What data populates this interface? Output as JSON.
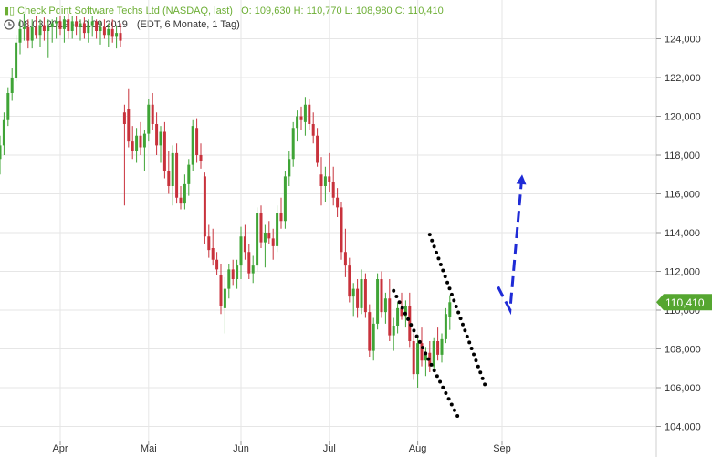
{
  "header": {
    "instrument": "Check Point Software Techs Ltd (NASDAQ, last)",
    "ohlc": "O: 109,630  H: 110,770  L: 108,980  C: 110,410",
    "date_range": "08.03.2019 - 10.09.2019",
    "info": "(EDT, 6 Monate, 1 Tag)",
    "icon": "candlestick-icon",
    "clock_icon": "clock-icon"
  },
  "colors": {
    "up": "#3fa436",
    "down": "#c8323c",
    "last_price_bg": "#55a630",
    "trendline": "#000000",
    "forecast": "#1f2bd6",
    "grid": "#e6e6e6",
    "axis_text": "#333333"
  },
  "chart_data": {
    "type": "candlestick",
    "title": "Check Point Software Techs Ltd (NASDAQ, last)",
    "xlabel": "",
    "ylabel": "",
    "ylim": [
      103.5,
      125
    ],
    "y_ticks": [
      104,
      106,
      108,
      110,
      112,
      114,
      116,
      118,
      120,
      122,
      124
    ],
    "y_tick_labels": [
      "104,000",
      "106,000",
      "108,000",
      "110,000",
      "112,000",
      "114,000",
      "116,000",
      "118,000",
      "120,000",
      "122,000",
      "124,000"
    ],
    "x_tick_labels": [
      "Apr",
      "Mai",
      "Jun",
      "Jul",
      "Aug",
      "Sep"
    ],
    "x_tick_index": [
      15,
      37,
      60,
      82,
      104,
      125
    ],
    "last_price": 110.41,
    "last_price_label": "110,410",
    "grid": true,
    "candles": [
      [
        117.8,
        119.0,
        117.0,
        118.5
      ],
      [
        118.5,
        120.2,
        118.0,
        119.8
      ],
      [
        119.8,
        121.5,
        119.5,
        121.2
      ],
      [
        121.2,
        122.5,
        120.8,
        122.0
      ],
      [
        122.0,
        124.2,
        121.8,
        123.8
      ],
      [
        123.8,
        125.0,
        123.2,
        124.5
      ],
      [
        124.5,
        125.3,
        123.9,
        124.6
      ],
      [
        124.6,
        125.0,
        123.5,
        123.9
      ],
      [
        123.9,
        125.0,
        123.5,
        124.6
      ],
      [
        124.6,
        125.2,
        124.0,
        124.2
      ],
      [
        124.2,
        125.0,
        123.6,
        124.7
      ],
      [
        124.7,
        125.1,
        123.9,
        124.4
      ],
      [
        124.4,
        125.0,
        123.0,
        124.6
      ],
      [
        124.6,
        125.0,
        123.8,
        124.8
      ],
      [
        124.8,
        125.1,
        124.0,
        124.9
      ],
      [
        124.9,
        125.2,
        124.2,
        124.5
      ],
      [
        124.5,
        125.2,
        123.8,
        125.0
      ],
      [
        125.0,
        125.3,
        124.0,
        124.4
      ],
      [
        124.4,
        125.2,
        124.0,
        124.9
      ],
      [
        124.9,
        125.2,
        124.2,
        124.6
      ],
      [
        124.6,
        125.0,
        123.9,
        124.8
      ],
      [
        124.8,
        125.1,
        124.0,
        124.3
      ],
      [
        124.3,
        125.0,
        123.8,
        124.7
      ],
      [
        124.7,
        125.2,
        124.1,
        124.9
      ],
      [
        124.9,
        125.0,
        124.0,
        124.4
      ],
      [
        124.4,
        124.9,
        123.7,
        124.6
      ],
      [
        124.6,
        125.0,
        124.0,
        124.2
      ],
      [
        124.2,
        124.8,
        123.6,
        124.5
      ],
      [
        124.5,
        125.0,
        123.8,
        124.1
      ],
      [
        124.1,
        124.7,
        123.5,
        124.3
      ],
      [
        124.3,
        124.8,
        123.6,
        123.9
      ],
      [
        120.2,
        120.6,
        115.4,
        119.6
      ],
      [
        120.4,
        121.4,
        118.4,
        118.7
      ],
      [
        118.7,
        119.5,
        117.8,
        118.2
      ],
      [
        118.2,
        119.4,
        117.6,
        119.0
      ],
      [
        119.0,
        119.7,
        118.0,
        118.4
      ],
      [
        118.4,
        119.3,
        117.2,
        119.1
      ],
      [
        119.1,
        120.9,
        118.7,
        120.6
      ],
      [
        120.6,
        121.2,
        119.3,
        119.6
      ],
      [
        119.6,
        120.2,
        118.0,
        118.5
      ],
      [
        118.5,
        119.5,
        117.6,
        119.2
      ],
      [
        119.2,
        119.7,
        116.8,
        117.2
      ],
      [
        117.2,
        118.2,
        116.0,
        116.4
      ],
      [
        116.4,
        118.5,
        115.4,
        118.1
      ],
      [
        118.1,
        118.6,
        115.5,
        115.8
      ],
      [
        115.8,
        116.4,
        115.2,
        115.5
      ],
      [
        115.5,
        117.0,
        115.2,
        116.5
      ],
      [
        116.5,
        117.8,
        115.9,
        117.5
      ],
      [
        117.5,
        119.8,
        117.2,
        119.5
      ],
      [
        119.4,
        119.9,
        117.6,
        118.0
      ],
      [
        118.0,
        118.6,
        117.3,
        117.7
      ],
      [
        116.9,
        117.1,
        113.4,
        113.8
      ],
      [
        113.8,
        114.4,
        112.7,
        113.1
      ],
      [
        113.2,
        114.2,
        112.3,
        112.6
      ],
      [
        112.6,
        113.0,
        111.8,
        112.1
      ],
      [
        111.8,
        112.4,
        109.8,
        110.2
      ],
      [
        110.1,
        111.7,
        108.8,
        111.1
      ],
      [
        111.1,
        112.4,
        110.6,
        112.1
      ],
      [
        112.1,
        112.6,
        111.3,
        111.6
      ],
      [
        111.6,
        112.6,
        111.1,
        112.3
      ],
      [
        112.3,
        114.3,
        111.6,
        113.8
      ],
      [
        113.8,
        114.4,
        112.6,
        113.0
      ],
      [
        113.0,
        113.4,
        111.6,
        111.9
      ],
      [
        111.9,
        112.8,
        111.4,
        112.3
      ],
      [
        112.3,
        115.3,
        112.0,
        115.0
      ],
      [
        115.0,
        115.4,
        113.2,
        113.5
      ],
      [
        113.5,
        114.4,
        112.2,
        114.0
      ],
      [
        114.0,
        114.6,
        113.4,
        113.7
      ],
      [
        113.7,
        114.2,
        112.6,
        113.3
      ],
      [
        113.3,
        115.4,
        113.0,
        115.0
      ],
      [
        115.0,
        115.8,
        114.2,
        114.6
      ],
      [
        114.6,
        117.2,
        114.2,
        116.9
      ],
      [
        116.9,
        118.2,
        116.4,
        117.8
      ],
      [
        117.8,
        119.7,
        117.4,
        119.4
      ],
      [
        119.4,
        120.3,
        118.7,
        120.0
      ],
      [
        120.0,
        120.5,
        119.3,
        119.8
      ],
      [
        119.7,
        121.0,
        119.0,
        120.6
      ],
      [
        120.6,
        120.9,
        119.3,
        119.6
      ],
      [
        119.6,
        120.2,
        118.6,
        119.0
      ],
      [
        119.0,
        119.4,
        117.4,
        117.6
      ],
      [
        117.0,
        117.9,
        115.4,
        116.4
      ],
      [
        116.4,
        117.4,
        115.6,
        116.9
      ],
      [
        116.9,
        118.1,
        116.1,
        116.6
      ],
      [
        116.6,
        117.4,
        115.4,
        115.8
      ],
      [
        115.8,
        116.3,
        114.8,
        115.3
      ],
      [
        115.3,
        115.6,
        112.6,
        113.0
      ],
      [
        113.0,
        114.2,
        111.7,
        112.3
      ],
      [
        112.3,
        112.7,
        110.4,
        110.7
      ],
      [
        110.7,
        111.4,
        109.7,
        111.1
      ],
      [
        111.1,
        111.6,
        109.6,
        110.1
      ],
      [
        110.1,
        112.1,
        109.8,
        111.6
      ],
      [
        111.6,
        111.9,
        109.6,
        109.9
      ],
      [
        109.9,
        110.3,
        107.6,
        107.9
      ],
      [
        107.9,
        109.6,
        107.4,
        109.3
      ],
      [
        109.3,
        111.9,
        109.0,
        111.6
      ],
      [
        111.6,
        112.0,
        109.6,
        109.9
      ],
      [
        109.9,
        110.9,
        109.3,
        110.6
      ],
      [
        110.6,
        111.6,
        108.4,
        108.7
      ],
      [
        108.7,
        109.6,
        107.9,
        109.2
      ],
      [
        109.2,
        110.4,
        108.8,
        110.1
      ],
      [
        110.1,
        110.9,
        109.5,
        109.7
      ],
      [
        109.7,
        110.5,
        109.1,
        110.2
      ],
      [
        110.2,
        110.9,
        108.1,
        108.4
      ],
      [
        108.4,
        108.8,
        106.4,
        106.7
      ],
      [
        106.7,
        108.6,
        106.0,
        108.3
      ],
      [
        108.3,
        109.1,
        107.1,
        107.4
      ],
      [
        107.4,
        108.1,
        106.6,
        107.8
      ],
      [
        107.8,
        108.4,
        106.8,
        107.1
      ],
      [
        107.1,
        108.6,
        106.9,
        108.4
      ],
      [
        108.4,
        109.1,
        107.4,
        107.7
      ],
      [
        107.7,
        108.8,
        107.3,
        108.5
      ],
      [
        108.5,
        110.1,
        108.3,
        109.8
      ],
      [
        109.63,
        110.77,
        108.98,
        110.41
      ]
    ],
    "annotations": [
      {
        "type": "dotted-line",
        "from": [
          107,
          113.9
        ],
        "to": [
          121,
          106.0
        ],
        "label": ""
      },
      {
        "type": "dotted-line",
        "from": [
          98,
          111.0
        ],
        "to": [
          114,
          104.5
        ],
        "label": ""
      },
      {
        "type": "dashed-arrow",
        "points": [
          [
            124,
            111.2
          ],
          [
            127,
            110.0
          ],
          [
            130,
            117.0
          ]
        ],
        "label": ""
      }
    ]
  }
}
